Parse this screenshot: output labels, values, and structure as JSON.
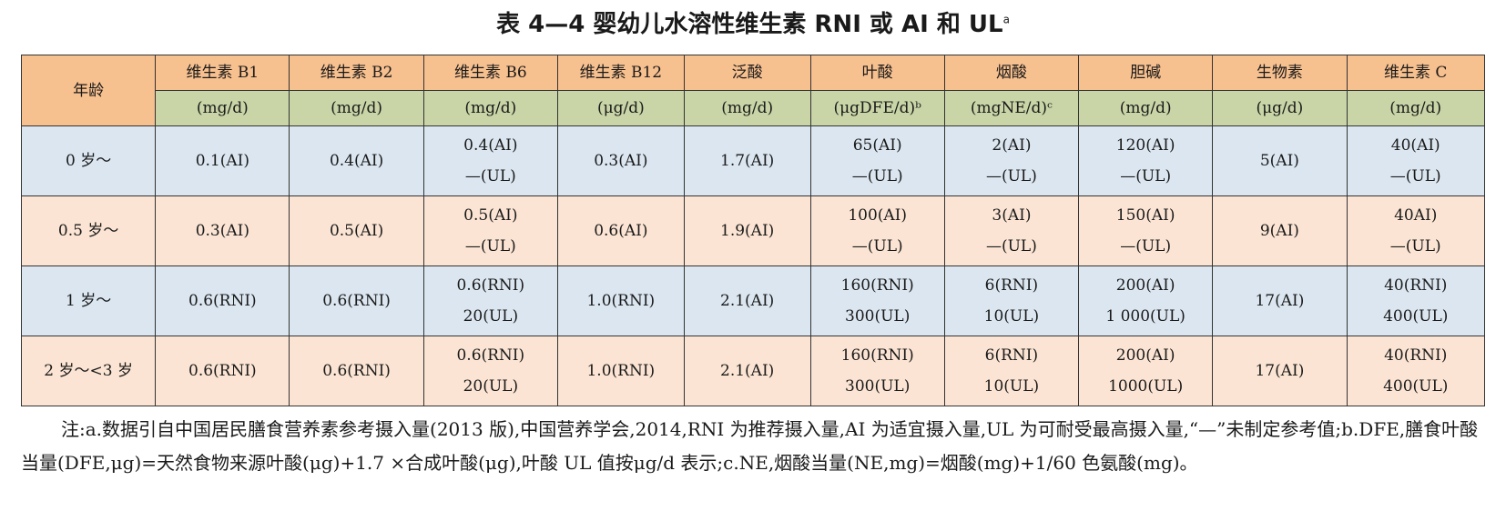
{
  "title": "表 4—4 婴幼儿水溶性维生素 RNI 或 AI 和 UL",
  "title_sup": "a",
  "table": {
    "age_header": "年龄",
    "columns": [
      {
        "name": "维生素 B1",
        "unit": "(mg/d)"
      },
      {
        "name": "维生素 B2",
        "unit": "(mg/d)"
      },
      {
        "name": "维生素 B6",
        "unit": "(mg/d)"
      },
      {
        "name": "维生素 B12",
        "unit": "(μg/d)"
      },
      {
        "name": "泛酸",
        "unit": "(mg/d)"
      },
      {
        "name": "叶酸",
        "unit": "(μgDFE/d)ᵇ"
      },
      {
        "name": "烟酸",
        "unit": "(mgNE/d)ᶜ"
      },
      {
        "name": "胆碱",
        "unit": "(mg/d)"
      },
      {
        "name": "生物素",
        "unit": "(μg/d)"
      },
      {
        "name": "维生素 C",
        "unit": "(mg/d)"
      }
    ],
    "rows": [
      {
        "age": "0 岁～",
        "cells": [
          [
            "0.1(AI)"
          ],
          [
            "0.4(AI)"
          ],
          [
            "0.4(AI)",
            "—(UL)"
          ],
          [
            "0.3(AI)"
          ],
          [
            "1.7(AI)"
          ],
          [
            "65(AI)",
            "—(UL)"
          ],
          [
            "2(AI)",
            "—(UL)"
          ],
          [
            "120(AI)",
            "—(UL)"
          ],
          [
            "5(AI)"
          ],
          [
            "40(AI)",
            "—(UL)"
          ]
        ]
      },
      {
        "age": "0.5 岁～",
        "cells": [
          [
            "0.3(AI)"
          ],
          [
            "0.5(AI)"
          ],
          [
            "0.5(AI)",
            "—(UL)"
          ],
          [
            "0.6(AI)"
          ],
          [
            "1.9(AI)"
          ],
          [
            "100(AI)",
            "—(UL)"
          ],
          [
            "3(AI)",
            "—(UL)"
          ],
          [
            "150(AI)",
            "—(UL)"
          ],
          [
            "9(AI)"
          ],
          [
            "40AI)",
            "—(UL)"
          ]
        ]
      },
      {
        "age": "1 岁～",
        "cells": [
          [
            "0.6(RNI)"
          ],
          [
            "0.6(RNI)"
          ],
          [
            "0.6(RNI)",
            "20(UL)"
          ],
          [
            "1.0(RNI)"
          ],
          [
            "2.1(AI)"
          ],
          [
            "160(RNI)",
            "300(UL)"
          ],
          [
            "6(RNI)",
            "10(UL)"
          ],
          [
            "200(AI)",
            "1 000(UL)"
          ],
          [
            "17(AI)"
          ],
          [
            "40(RNI)",
            "400(UL)"
          ]
        ]
      },
      {
        "age": "2 岁～<3 岁",
        "cells": [
          [
            "0.6(RNI)"
          ],
          [
            "0.6(RNI)"
          ],
          [
            "0.6(RNI)",
            "20(UL)"
          ],
          [
            "1.0(RNI)"
          ],
          [
            "2.1(AI)"
          ],
          [
            "160(RNI)",
            "300(UL)"
          ],
          [
            "6(RNI)",
            "10(UL)"
          ],
          [
            "200(AI)",
            "1000(UL)"
          ],
          [
            "17(AI)"
          ],
          [
            "40(RNI)",
            "400(UL)"
          ]
        ]
      }
    ]
  },
  "note": "注:a.数据引自中国居民膳食营养素参考摄入量(2013 版),中国营养学会,2014,RNI 为推荐摄入量,AI 为适宜摄入量,UL 为可耐受最高摄入量,“—”未制定参考值;b.DFE,膳食叶酸当量(DFE,μg)=天然食物来源叶酸(μg)+1.7 ×合成叶酸(μg),叶酸 UL 值按μg/d 表示;c.NE,烟酸当量(NE,mg)=烟酸(mg)+1/60 色氨酸(mg)。"
}
